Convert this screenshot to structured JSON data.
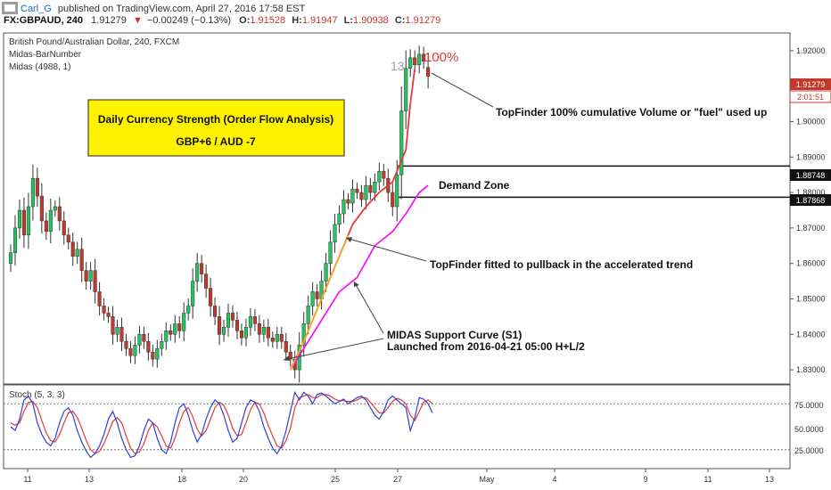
{
  "header": {
    "author": "Carl_G",
    "published": "published on TradingView.com, April 27, 2016 17:58 EST",
    "symbol": "FX:GBPAUD, 240",
    "last": "1.91279",
    "change": "−0.00249 (−0.13%)",
    "o_label": "O:",
    "o_val": "1.91528",
    "h_label": "H:",
    "h_val": "1.91947",
    "l_label": "L:",
    "l_val": "1.90938",
    "c_label": "C:",
    "c_val": "1.91279"
  },
  "legend": {
    "line1": "British Pound/Australian Dollar, 240, FXCM",
    "line2": "Midas-BarNumber",
    "line3": "Midas (4988, 1)"
  },
  "infobox": {
    "title": "Daily Currency Strength (Order Flow Analysis)",
    "values": "GBP+6  /  AUD -7"
  },
  "annotations": {
    "topfinder_fuel": "TopFinder 100% cumulative Volume or \"fuel\" used up",
    "demand_zone": "Demand Zone",
    "topfinder_pullback": "TopFinder fitted to pullback in the accelerated trend",
    "midas_line1": "MIDAS Support Curve (S1)",
    "midas_line2": "Launched from 2016-04-21 05:00 H+L/2",
    "bar_number": "13",
    "percent": "100%"
  },
  "price_badges": {
    "last": "1.91279",
    "countdown": "2:01:51",
    "zone_top": "1.88748",
    "zone_bottom": "1.87868"
  },
  "stoch": {
    "label": "Stoch (5, 3, 3)",
    "ticks": [
      "75.0000",
      "50.0000",
      "25.0000"
    ]
  },
  "colors": {
    "up": "#26a69a",
    "up_fill": "#22c55e",
    "down": "#c0392b",
    "topfinder": "#e53935",
    "topfinder_early": "#f5a623",
    "midas": "#ff00ff",
    "stoch_k": "#2f3fd6",
    "stoch_d": "#e53935",
    "infobox_bg": "#fff200"
  },
  "chart_data": {
    "type": "candlestick",
    "symbol": "GBPAUD",
    "timeframe": "240",
    "y_ticks": [
      1.83,
      1.84,
      1.85,
      1.86,
      1.87,
      1.88,
      1.89,
      1.9,
      1.92
    ],
    "ylim": [
      1.826,
      1.925
    ],
    "x_ticks": [
      "11",
      "13",
      "18",
      "20",
      "25",
      "27",
      "May",
      "4",
      "9",
      "11",
      "13"
    ],
    "close_path": [
      1.863,
      1.87,
      1.875,
      1.868,
      1.876,
      1.884,
      1.879,
      1.872,
      1.869,
      1.875,
      1.876,
      1.872,
      1.868,
      1.866,
      1.862,
      1.864,
      1.858,
      1.855,
      1.858,
      1.852,
      1.848,
      1.846,
      1.845,
      1.84,
      1.842,
      1.838,
      1.836,
      1.834,
      1.837,
      1.84,
      1.838,
      1.835,
      1.833,
      1.836,
      1.838,
      1.841,
      1.84,
      1.843,
      1.841,
      1.846,
      1.848,
      1.855,
      1.86,
      1.857,
      1.853,
      1.848,
      1.845,
      1.84,
      1.842,
      1.846,
      1.844,
      1.841,
      1.839,
      1.842,
      1.845,
      1.843,
      1.84,
      1.842,
      1.839,
      1.838,
      1.84,
      1.838,
      1.835,
      1.833,
      1.83,
      1.837,
      1.843,
      1.848,
      1.852,
      1.85,
      1.855,
      1.86,
      1.866,
      1.871,
      1.874,
      1.878,
      1.877,
      1.881,
      1.88,
      1.878,
      1.882,
      1.88,
      1.883,
      1.886,
      1.884,
      1.88,
      1.876,
      1.885,
      1.903,
      1.915,
      1.918,
      1.916,
      1.919,
      1.917,
      1.913
    ],
    "last_candle": {
      "open": 1.91528,
      "high": 1.91947,
      "low": 1.90938,
      "close": 1.91279
    },
    "levels": {
      "demand_zone_top": 1.88748,
      "demand_zone_bottom": 1.87868
    },
    "topfinder_curve": [
      [
        63,
        1.83
      ],
      [
        66,
        1.838
      ],
      [
        70,
        1.85
      ],
      [
        74,
        1.862
      ],
      [
        77,
        1.871
      ],
      [
        80,
        1.876
      ],
      [
        83,
        1.88
      ],
      [
        86,
        1.883
      ],
      [
        89,
        1.892
      ],
      [
        90,
        1.905
      ],
      [
        91,
        1.915
      ]
    ],
    "topfinder_early_segment": [
      [
        63,
        1.83
      ],
      [
        66,
        1.838
      ],
      [
        70,
        1.85
      ],
      [
        74,
        1.862
      ],
      [
        76,
        1.868
      ]
    ],
    "midas_curve": [
      [
        63,
        1.83
      ],
      [
        66,
        1.836
      ],
      [
        70,
        1.844
      ],
      [
        74,
        1.852
      ],
      [
        78,
        1.856
      ],
      [
        82,
        1.865
      ],
      [
        86,
        1.869
      ],
      [
        89,
        1.874
      ],
      [
        92,
        1.88
      ],
      [
        94,
        1.882
      ]
    ],
    "stoch": {
      "ylim": [
        0,
        100
      ],
      "levels": [
        80,
        20
      ],
      "k": [
        50,
        45,
        60,
        85,
        90,
        80,
        55,
        40,
        30,
        25,
        35,
        55,
        70,
        75,
        65,
        45,
        30,
        18,
        10,
        15,
        25,
        40,
        60,
        70,
        55,
        35,
        20,
        10,
        12,
        25,
        45,
        60,
        55,
        35,
        20,
        15,
        30,
        55,
        75,
        80,
        65,
        45,
        30,
        40,
        60,
        75,
        85,
        80,
        65,
        45,
        30,
        35,
        55,
        75,
        85,
        82,
        70,
        50,
        35,
        22,
        15,
        25,
        45,
        70,
        95,
        85,
        95,
        90,
        80,
        92,
        94,
        90,
        85,
        80,
        83,
        86,
        80,
        84,
        88,
        90,
        85,
        75,
        65,
        60,
        70,
        85,
        90,
        85,
        80,
        75,
        45,
        62,
        88,
        86,
        80,
        68
      ],
      "d": [
        55,
        52,
        55,
        70,
        82,
        83,
        75,
        58,
        42,
        32,
        30,
        40,
        55,
        68,
        70,
        62,
        48,
        32,
        20,
        15,
        18,
        28,
        42,
        57,
        62,
        55,
        38,
        22,
        15,
        17,
        28,
        45,
        55,
        50,
        38,
        25,
        22,
        35,
        55,
        70,
        75,
        63,
        47,
        38,
        45,
        60,
        75,
        82,
        78,
        65,
        48,
        38,
        40,
        55,
        72,
        82,
        80,
        68,
        52,
        38,
        25,
        22,
        32,
        48,
        75,
        88,
        90,
        92,
        88,
        88,
        92,
        92,
        90,
        86,
        84,
        84,
        83,
        83,
        85,
        88,
        88,
        82,
        75,
        68,
        68,
        75,
        83,
        87,
        85,
        80,
        65,
        58,
        70,
        82,
        85,
        80
      ]
    }
  }
}
